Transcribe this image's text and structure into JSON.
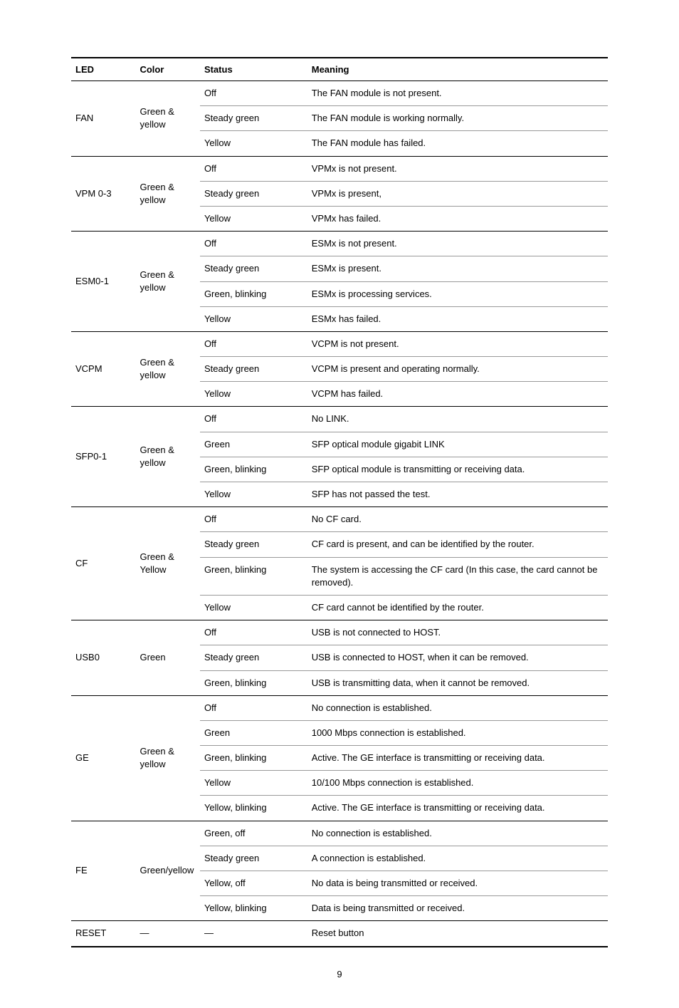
{
  "headers": {
    "led": "LED",
    "color": "Color",
    "status": "Status",
    "meaning": "Meaning"
  },
  "groups": [
    {
      "led": "FAN",
      "color": "Green & yellow",
      "rows": [
        {
          "status": "Off",
          "meaning": "The FAN module is not present."
        },
        {
          "status": "Steady green",
          "meaning": "The FAN module is working normally."
        },
        {
          "status": "Yellow",
          "meaning": "The FAN module has failed."
        }
      ]
    },
    {
      "led": "VPM 0-3",
      "color": "Green & yellow",
      "rows": [
        {
          "status": "Off",
          "meaning": "VPMx is not present."
        },
        {
          "status": "Steady green",
          "meaning": "VPMx is present,"
        },
        {
          "status": "Yellow",
          "meaning": "VPMx has failed."
        }
      ]
    },
    {
      "led": "ESM0-1",
      "color": "Green & yellow",
      "rows": [
        {
          "status": "Off",
          "meaning": "ESMx is not present."
        },
        {
          "status": "Steady green",
          "meaning": "ESMx is present."
        },
        {
          "status": "Green, blinking",
          "meaning": "ESMx is processing services."
        },
        {
          "status": "Yellow",
          "meaning": "ESMx has failed."
        }
      ]
    },
    {
      "led": "VCPM",
      "color": "Green & yellow",
      "rows": [
        {
          "status": "Off",
          "meaning": "VCPM is not present."
        },
        {
          "status": "Steady green",
          "meaning": "VCPM is present and operating normally."
        },
        {
          "status": "Yellow",
          "meaning": "VCPM has failed."
        }
      ]
    },
    {
      "led": "SFP0-1",
      "color": "Green & yellow",
      "rows": [
        {
          "status": "Off",
          "meaning": "No LINK."
        },
        {
          "status": "Green",
          "meaning": "SFP optical module gigabit LINK"
        },
        {
          "status": "Green, blinking",
          "meaning": "SFP optical module is transmitting or receiving data."
        },
        {
          "status": "Yellow",
          "meaning": "SFP has not passed the test."
        }
      ]
    },
    {
      "led": "CF",
      "color": "Green & Yellow",
      "rows": [
        {
          "status": "Off",
          "meaning": "No CF card."
        },
        {
          "status": "Steady green",
          "meaning": "CF card is present, and can be identified by the router."
        },
        {
          "status": "Green, blinking",
          "meaning": "The system is accessing the CF card (In this case, the card cannot be removed)."
        },
        {
          "status": "Yellow",
          "meaning": "CF card cannot be identified by the router."
        }
      ]
    },
    {
      "led": "USB0",
      "color": "Green",
      "rows": [
        {
          "status": "Off",
          "meaning": "USB is not connected to HOST."
        },
        {
          "status": "Steady green",
          "meaning": "USB is connected to HOST, when it can be removed."
        },
        {
          "status": "Green, blinking",
          "meaning": "USB is transmitting data, when it cannot be removed."
        }
      ]
    },
    {
      "led": "GE",
      "color": "Green & yellow",
      "rows": [
        {
          "status": "Off",
          "meaning": "No connection is established."
        },
        {
          "status": "Green",
          "meaning": "1000 Mbps connection is established."
        },
        {
          "status": "Green, blinking",
          "meaning": "Active. The GE interface is transmitting or receiving data."
        },
        {
          "status": "Yellow",
          "meaning": "10/100 Mbps connection is established."
        },
        {
          "status": "Yellow, blinking",
          "meaning": "Active. The GE interface is transmitting or receiving data."
        }
      ]
    },
    {
      "led": "FE",
      "color": "Green/yellow",
      "rows": [
        {
          "status": "Green, off",
          "meaning": "No connection is established."
        },
        {
          "status": "Steady green",
          "meaning": "A connection is established."
        },
        {
          "status": "Yellow, off",
          "meaning": "No data is being transmitted or received."
        },
        {
          "status": "Yellow, blinking",
          "meaning": "Data is being transmitted or received."
        }
      ]
    },
    {
      "led": "RESET",
      "color": "—",
      "rows": [
        {
          "status": "—",
          "meaning": "Reset button"
        }
      ]
    }
  ],
  "page_number": "9"
}
